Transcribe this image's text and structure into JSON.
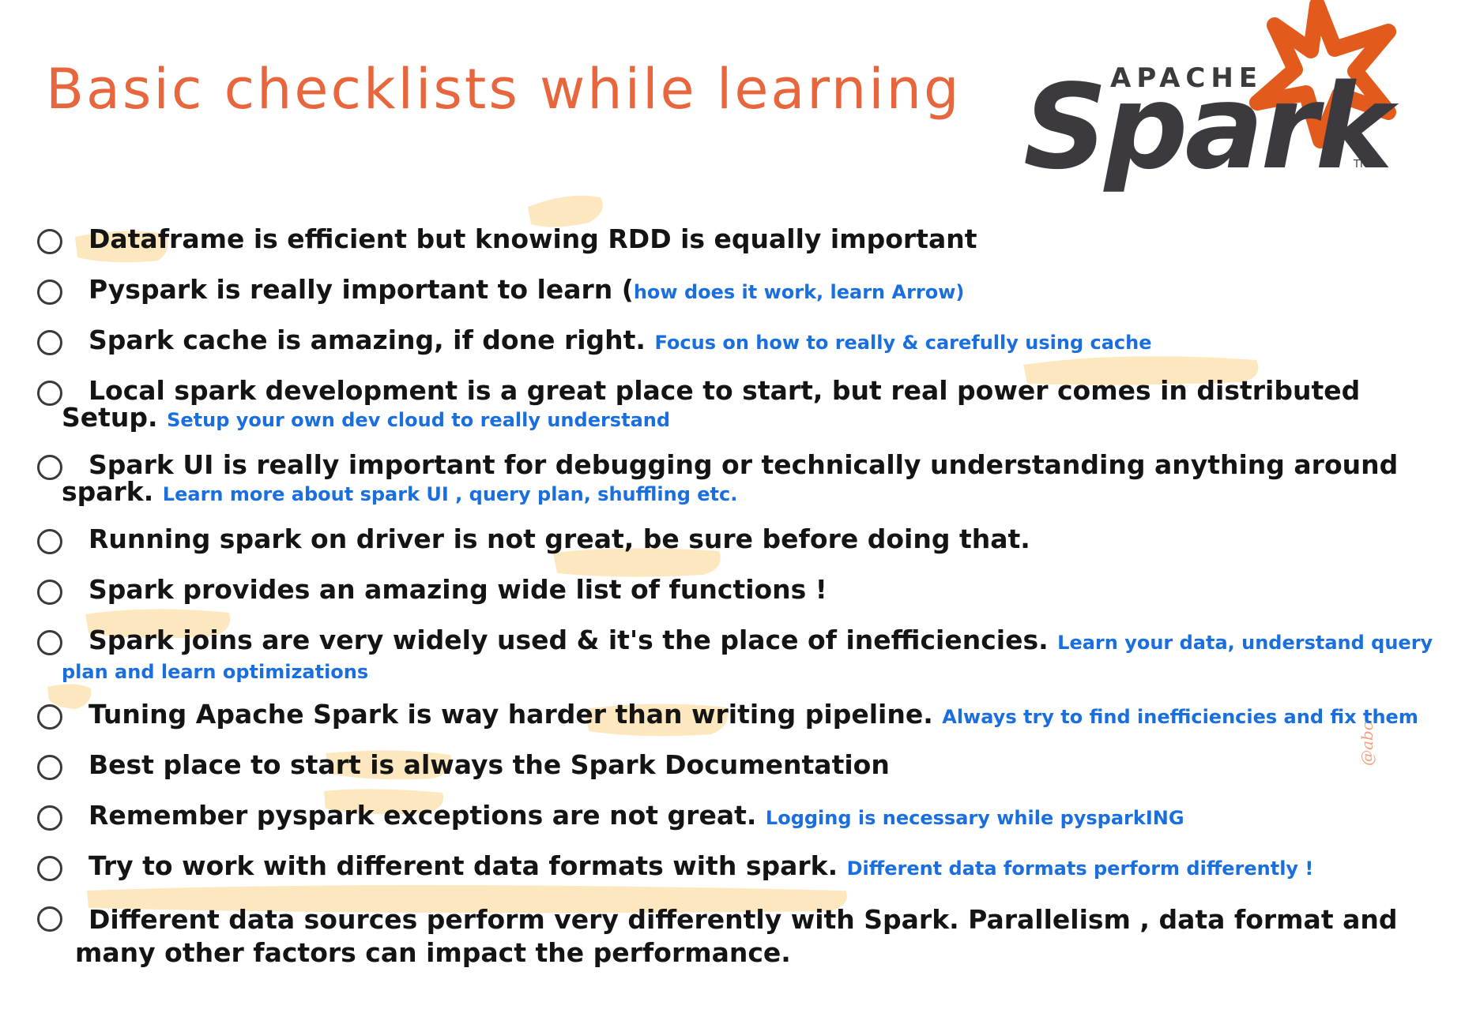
{
  "title": "Basic checklists while learning",
  "logo": {
    "top_text": "APACHE",
    "main_text": "Spark",
    "tm": "TM",
    "star_color": "#e25a1c",
    "text_color": "#3c3a3e"
  },
  "colors": {
    "title": "#e8663d",
    "main_text": "#141414",
    "note_text": "#1a6fe0",
    "highlight": "#fde3b3"
  },
  "items": [
    {
      "main": "Dataframe is efficient but knowing RDD is equally important",
      "note": ""
    },
    {
      "main": "Pyspark is really important to learn (",
      "note": "how does it work, learn Arrow)"
    },
    {
      "main": "Spark cache is amazing, if done right.",
      "note": "Focus on how to really & carefully using cache"
    },
    {
      "main": "Local spark development is a great place to start, but real power comes in distributed Setup.",
      "note": "Setup your own dev cloud to really understand"
    },
    {
      "main": "Spark UI is really important for debugging or technically understanding anything around spark.",
      "note": "Learn more about spark UI , query plan, shuffling etc."
    },
    {
      "main": "Running spark on driver is not great, be sure before doing that.",
      "note": ""
    },
    {
      "main": "Spark provides an amazing wide list of functions !",
      "note": ""
    },
    {
      "main": "Spark joins are very widely used & it's the place of inefficiencies.",
      "note": "Learn your data, understand query plan and learn optimizations"
    },
    {
      "main": "Tuning Apache Spark is way harder than writing pipeline.",
      "note": "Always try to find inefficiencies and fix them"
    },
    {
      "main": "Best place to start is always the Spark Documentation",
      "note": ""
    },
    {
      "main": "Remember pyspark exceptions are not great.",
      "note": "Logging is necessary while pysparkING"
    },
    {
      "main": "Try to work with different data formats with spark.",
      "note": "Different data formats perform differently !"
    },
    {
      "main": "Different data sources perform very differently with Spark. Parallelism , data format and many other factors can impact the performance.",
      "note": ""
    }
  ],
  "watermark": "@abc"
}
